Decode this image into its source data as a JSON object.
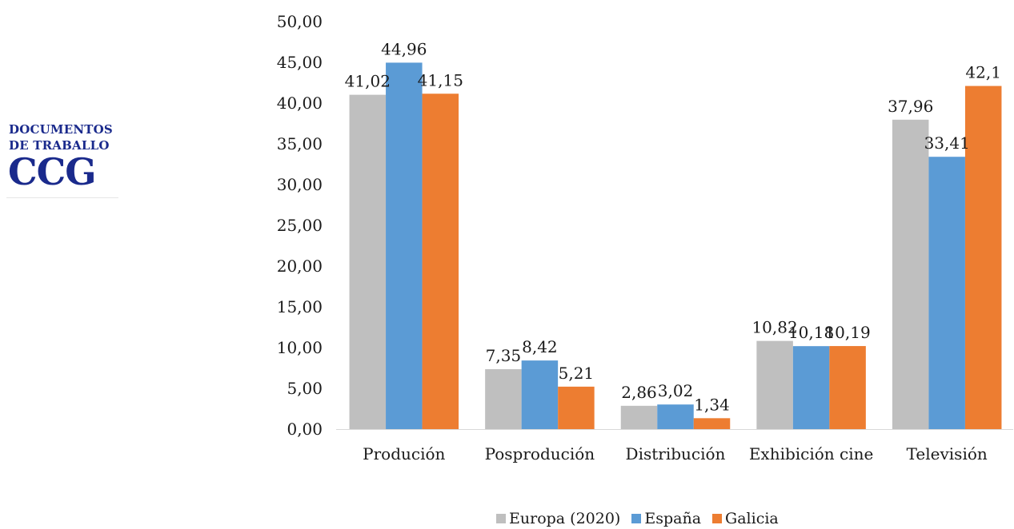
{
  "logo": {
    "line1": "DOCUMENTOS",
    "line2": "DE TRABALLO",
    "mark": "CCG"
  },
  "colors": {
    "europa": "#bfbfbf",
    "espana": "#5b9bd5",
    "galicia": "#ed7d31",
    "text": "#1a1a1a",
    "logo": "#1a2a8c"
  },
  "chart_data": {
    "type": "bar",
    "title": "",
    "xlabel": "",
    "ylabel": "",
    "ylim": [
      0,
      50
    ],
    "y_ticks": [
      "0,00",
      "5,00",
      "10,00",
      "15,00",
      "20,00",
      "25,00",
      "30,00",
      "35,00",
      "40,00",
      "45,00",
      "50,00"
    ],
    "grid": false,
    "legend_position": "bottom",
    "categories": [
      "Produción",
      "Posprodución",
      "Distribución",
      "Exhibición cine",
      "Televisión"
    ],
    "series": [
      {
        "name": "Europa (2020)",
        "color": "#bfbfbf",
        "values": [
          41.02,
          7.35,
          2.86,
          10.82,
          37.96
        ],
        "labels": [
          "41,02",
          "7,35",
          "2,86",
          "10,82",
          "37,96"
        ]
      },
      {
        "name": "España",
        "color": "#5b9bd5",
        "values": [
          44.96,
          8.42,
          3.02,
          10.18,
          33.41
        ],
        "labels": [
          "44,96",
          "8,42",
          "3,02",
          "10,18",
          "33,41"
        ]
      },
      {
        "name": "Galicia",
        "color": "#ed7d31",
        "values": [
          41.15,
          5.21,
          1.34,
          10.19,
          42.1
        ],
        "labels": [
          "41,15",
          "5,21",
          "1,34",
          "10,19",
          "42,1"
        ]
      }
    ]
  }
}
